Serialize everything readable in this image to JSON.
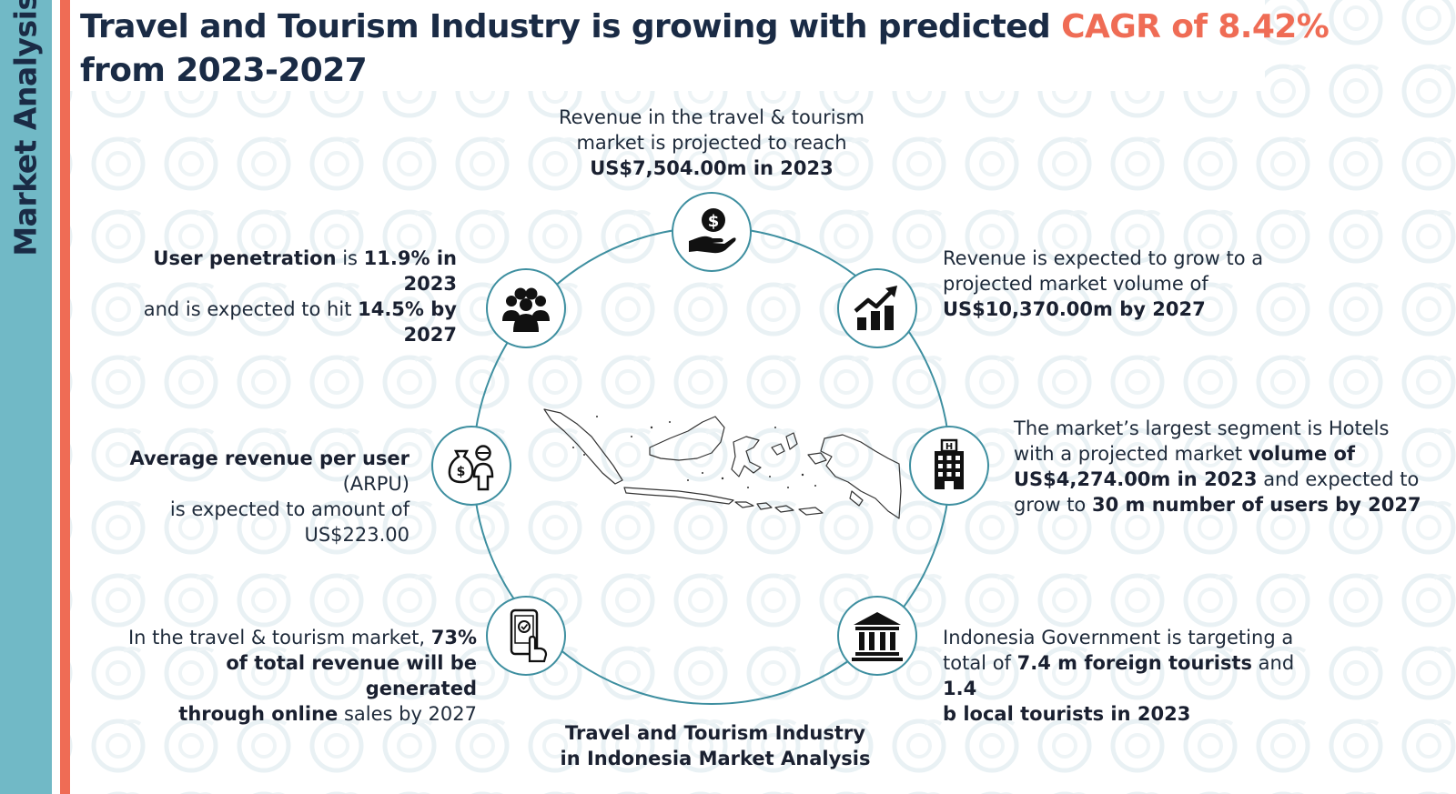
{
  "sidebar": {
    "label": "Market Analysis"
  },
  "title": {
    "part1": "Travel and Tourism Industry is growing with predicted ",
    "highlight": "CAGR of 8.42%",
    "part2": " from 2023-2027"
  },
  "colors": {
    "accent": "#ef6c55",
    "sidebar": "#71b9c6",
    "circle": "#3e8fa0",
    "heading": "#1a2b45"
  },
  "nodes": [
    {
      "icon": "money-hand-icon",
      "text": {
        "l1": "Revenue in the travel & tourism",
        "l2": "market is projected to reach",
        "b1": "US$7,504.00m in 2023"
      }
    },
    {
      "icon": "growth-chart-icon",
      "text": {
        "l1": "Revenue is expected to grow to a",
        "l2": "projected market volume of",
        "b1": "US$10,370.00m by 2027"
      }
    },
    {
      "icon": "hotel-building-icon",
      "text": {
        "t1": "The market’s largest segment is Hotels",
        "t2": "with a projected market ",
        "b1": "volume of",
        "b2": "US$4,274.00m in 2023",
        "t3": " and expected to",
        "t4": "grow to ",
        "b3": "30 m number of users by 2027"
      }
    },
    {
      "icon": "government-building-icon",
      "text": {
        "t1": "Indonesia Government is targeting a",
        "t2": "total of ",
        "b1": "7.4 m foreign tourists",
        "t3": " and ",
        "b2": "1.4",
        "b3": "b local tourists in 2023"
      }
    },
    {
      "icon": "touch-phone-icon",
      "text": {
        "t1": "In the travel & tourism market, ",
        "b1": "73%",
        "b2": "of total revenue will be generated",
        "b3": "through online",
        "t2": " sales by 2027"
      }
    },
    {
      "icon": "money-bag-person-icon",
      "text": {
        "b1": "Average revenue per user",
        "t1": " (ARPU)",
        "t2": "is expected to amount of US$223.00"
      }
    },
    {
      "icon": "user-group-icon",
      "text": {
        "b1": "User penetration",
        "t1": " is ",
        "b2": "11.9% in 2023",
        "t2": "and is expected to hit ",
        "b3": "14.5% by",
        "b4": "2027"
      }
    }
  ],
  "center": {
    "line1": "Travel and Tourism Industry",
    "line2": "in Indonesia Market Analysis"
  }
}
